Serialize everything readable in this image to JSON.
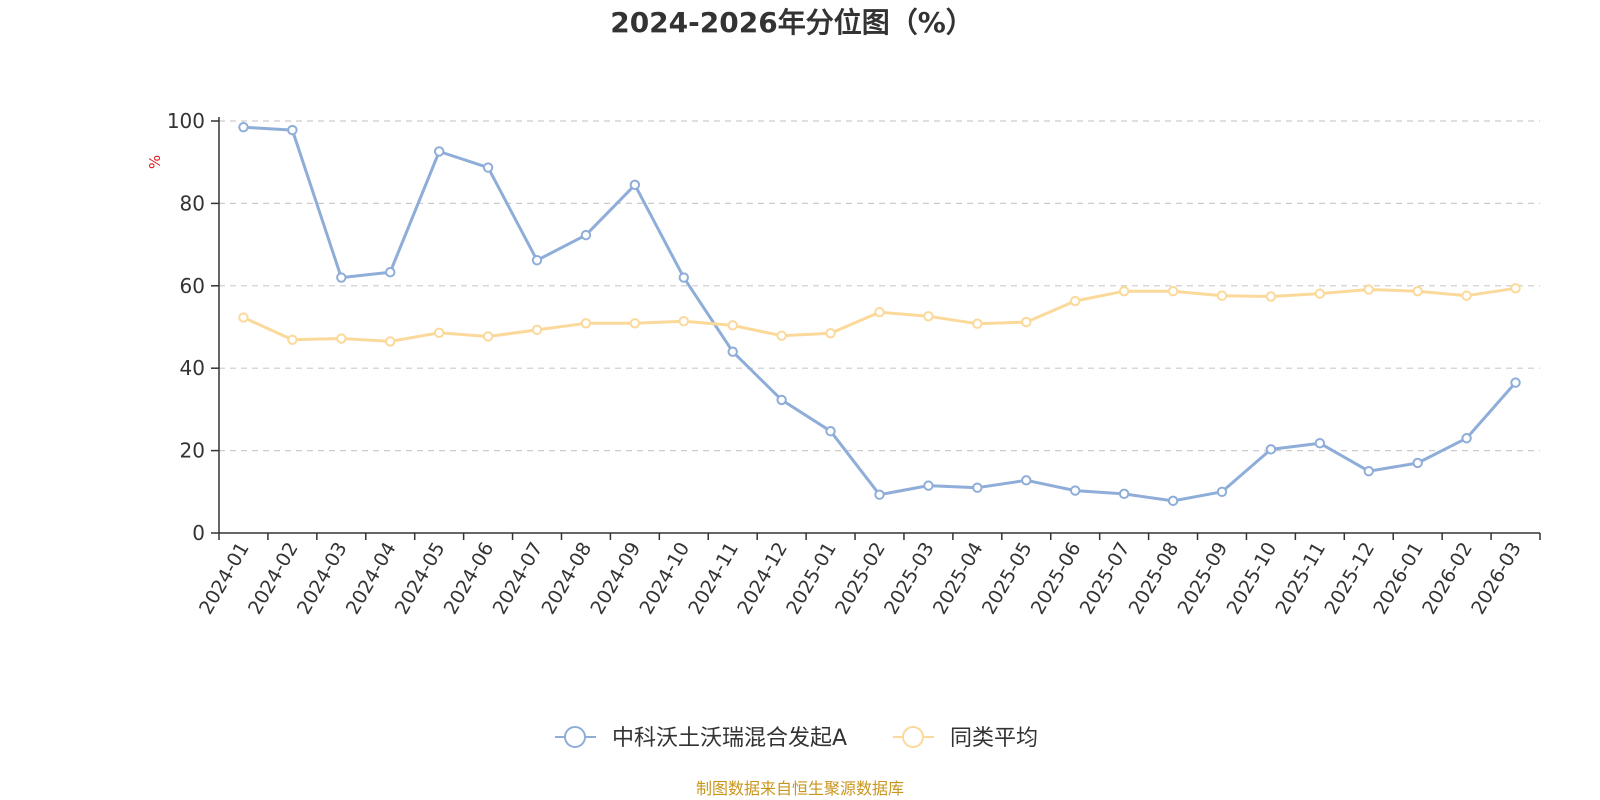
{
  "chart_data": {
    "type": "line",
    "title": "2024-2026年分位图（%）",
    "ylabel": "%",
    "xlabel": "",
    "ylim": [
      0,
      100
    ],
    "yticks": [
      0,
      20,
      40,
      60,
      80,
      100
    ],
    "grid": true,
    "legend_position": "bottom-center",
    "categories": [
      "2024-01",
      "2024-02",
      "2024-03",
      "2024-04",
      "2024-05",
      "2024-06",
      "2024-07",
      "2024-08",
      "2024-09",
      "2024-10",
      "2024-11",
      "2024-12",
      "2025-01",
      "2025-02",
      "2025-03",
      "2025-04",
      "2025-05",
      "2025-06",
      "2025-07",
      "2025-08",
      "2025-09",
      "2025-10",
      "2025-11",
      "2025-12",
      "2026-01",
      "2026-02",
      "2026-03"
    ],
    "series": [
      {
        "name": "中科沃土沃瑞混合发起A",
        "color": "#8eadd8",
        "values": [
          98.5,
          97.8,
          62.0,
          63.3,
          92.6,
          88.7,
          66.2,
          72.3,
          84.5,
          62.0,
          44.0,
          32.3,
          24.7,
          9.3,
          11.5,
          11.0,
          12.8,
          10.3,
          9.5,
          7.8,
          10.0,
          20.3,
          21.8,
          15.0,
          17.0,
          23.0,
          36.5
        ]
      },
      {
        "name": "同类平均",
        "color": "#fbd99a",
        "values": [
          52.3,
          46.9,
          47.2,
          46.5,
          48.6,
          47.7,
          49.3,
          50.9,
          50.9,
          51.4,
          50.4,
          47.9,
          48.5,
          53.6,
          52.6,
          50.8,
          51.2,
          56.3,
          58.7,
          58.7,
          57.6,
          57.4,
          58.1,
          59.1,
          58.7,
          57.6,
          59.4
        ]
      }
    ]
  },
  "colors": {
    "axis": "#333333",
    "grid": "#cccccc",
    "unit_label": "#e02020",
    "source_text": "#c8961e"
  },
  "source": "制图数据来自恒生聚源数据库"
}
